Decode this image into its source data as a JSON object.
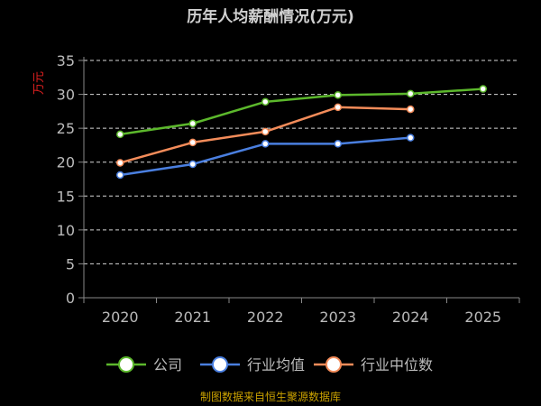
{
  "chart_data": {
    "type": "line",
    "title": "历年人均薪酬情况(万元)",
    "ylabel": "万元",
    "xlabel": "",
    "categories": [
      "2020",
      "2021",
      "2022",
      "2023",
      "2024",
      "2025"
    ],
    "ylim": [
      0,
      35
    ],
    "yticks": [
      0,
      5,
      10,
      15,
      20,
      25,
      30,
      35
    ],
    "grid": true,
    "legend_position": "bottom",
    "series": [
      {
        "name": "公司",
        "color": "#5cb82c",
        "values": [
          24.1,
          25.7,
          28.9,
          29.9,
          30.1,
          30.8
        ]
      },
      {
        "name": "行业均值",
        "color": "#4a7fe0",
        "values": [
          18.1,
          19.7,
          22.7,
          22.7,
          23.6,
          null
        ]
      },
      {
        "name": "行业中位数",
        "color": "#f48c5a",
        "values": [
          19.9,
          22.9,
          24.5,
          28.1,
          27.8,
          null
        ]
      }
    ],
    "source_note": "制图数据来自恒生聚源数据库"
  }
}
